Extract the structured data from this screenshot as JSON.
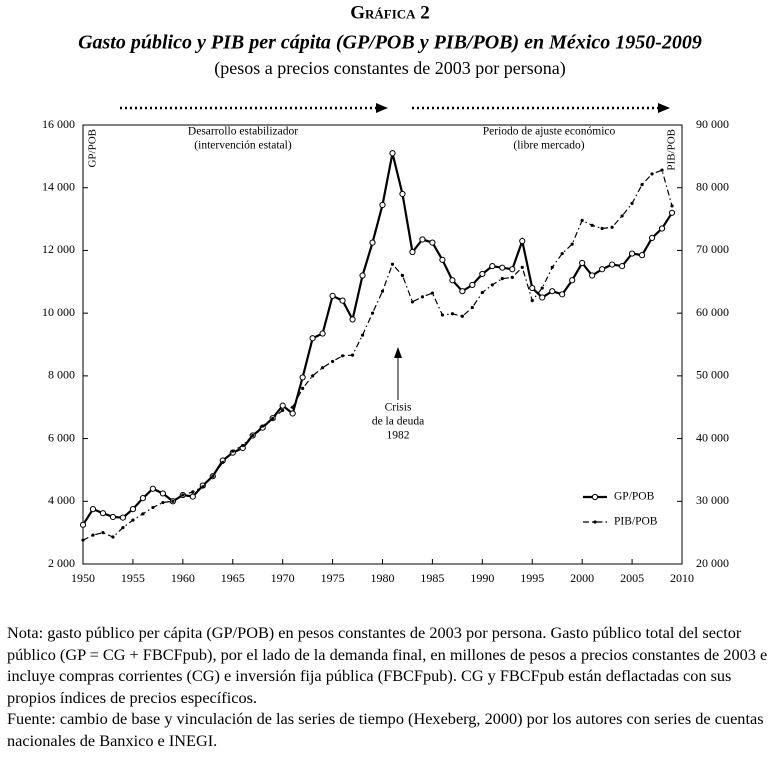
{
  "figure_label": "Gráfica 2",
  "chart_data": {
    "type": "line",
    "title": "Gasto público y PIB per cápita (GP/POB y PIB/POB) en México 1950-2009",
    "subtitle": "(pesos a precios constantes de 2003 por persona)",
    "ylabel": "GP/POB",
    "y2label": "PIB/POB",
    "annotations": [
      "Desarrollo estabilizador",
      "(intervención estatal)",
      "Periodo de ajuste económico",
      "(libre mercado)",
      "Crisis",
      "de la deuda",
      "1982"
    ],
    "x": [
      1950,
      1951,
      1952,
      1953,
      1954,
      1955,
      1956,
      1957,
      1958,
      1959,
      1960,
      1961,
      1962,
      1963,
      1964,
      1965,
      1966,
      1967,
      1968,
      1969,
      1970,
      1971,
      1972,
      1973,
      1974,
      1975,
      1976,
      1977,
      1978,
      1979,
      1980,
      1981,
      1982,
      1983,
      1984,
      1985,
      1986,
      1987,
      1988,
      1989,
      1990,
      1991,
      1992,
      1993,
      1994,
      1995,
      1996,
      1997,
      1998,
      1999,
      2000,
      2001,
      2002,
      2003,
      2004,
      2005,
      2006,
      2007,
      2008,
      2009
    ],
    "series": [
      {
        "name": "GP/POB",
        "color": "#000000",
        "axis": "y",
        "values": [
          3250,
          3750,
          3620,
          3500,
          3480,
          3750,
          4100,
          4400,
          4250,
          4000,
          4200,
          4150,
          4500,
          4800,
          5300,
          5550,
          5700,
          6100,
          6350,
          6650,
          7050,
          6800,
          7950,
          9200,
          9350,
          10550,
          10400,
          9800,
          11200,
          12250,
          13450,
          15100,
          13800,
          11950,
          12350,
          12250,
          11700,
          11050,
          10700,
          10900,
          11250,
          11500,
          11450,
          11400,
          12300,
          10800,
          10500,
          10700,
          10600,
          11050,
          11600,
          11200,
          11400,
          11550,
          11500,
          11900,
          11850,
          12400,
          12700,
          13200
        ]
      },
      {
        "name": "PIB/POB",
        "color": "#000000",
        "axis": "y2",
        "values": [
          23800,
          24600,
          25000,
          24300,
          25800,
          27000,
          28000,
          29000,
          29800,
          30000,
          31000,
          31500,
          32300,
          34000,
          36200,
          38000,
          38900,
          40500,
          42000,
          43200,
          44500,
          45000,
          48000,
          50000,
          51300,
          52300,
          53200,
          53300,
          56500,
          60000,
          63500,
          67800,
          66000,
          61800,
          62600,
          63200,
          59700,
          59900,
          59500,
          60900,
          63300,
          64500,
          65500,
          65700,
          67300,
          62000,
          64000,
          67300,
          69500,
          71000,
          74800,
          74000,
          73500,
          73700,
          75500,
          77500,
          80500,
          82200,
          82800,
          77100
        ]
      }
    ],
    "xlim": [
      1950,
      2010
    ],
    "xticks": [
      1950,
      1955,
      1960,
      1965,
      1970,
      1975,
      1980,
      1985,
      1990,
      1995,
      2000,
      2005,
      2010
    ],
    "ylim": [
      2000,
      16000
    ],
    "yticks": [
      {
        "value": 2000,
        "label": "2 000"
      },
      {
        "value": 4000,
        "label": "4 000"
      },
      {
        "value": 6000,
        "label": "6 000"
      },
      {
        "value": 8000,
        "label": "8 000"
      },
      {
        "value": 10000,
        "label": "10 000"
      },
      {
        "value": 12000,
        "label": "12 000"
      },
      {
        "value": 14000,
        "label": "14 000"
      },
      {
        "value": 16000,
        "label": "16 000"
      }
    ],
    "y2lim": [
      20000,
      90000
    ],
    "y2ticks": [
      {
        "value": 20000,
        "label": "20 000"
      },
      {
        "value": 30000,
        "label": "30 000"
      },
      {
        "value": 40000,
        "label": "40 000"
      },
      {
        "value": 50000,
        "label": "50 000"
      },
      {
        "value": 60000,
        "label": "60 000"
      },
      {
        "value": 70000,
        "label": "70 000"
      },
      {
        "value": 80000,
        "label": "80 000"
      },
      {
        "value": 90000,
        "label": "90 000"
      }
    ],
    "legend": "lower right"
  },
  "note": "Nota: gasto público per cápita (GP/POB) en pesos constantes de 2003 por persona. Gasto público total del sector público (GP = CG + FBCFpub), por el lado de la demanda final, en millones de pesos a precios constantes de 2003 e incluye compras corrientes (CG) e inversión fija pública (FBCFpub). CG y FBCFpub están deflactadas con sus propios índices de precios específicos.",
  "source": "Fuente: cambio de base y vinculación de las series de tiempo (Hexeberg, 2000) por los autores con series de cuentas nacionales de Banxico e INEGI."
}
